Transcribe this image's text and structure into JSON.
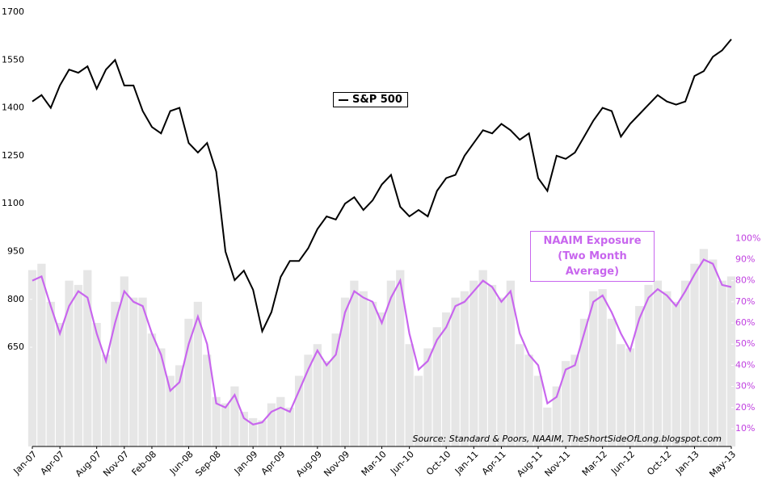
{
  "chart_data": {
    "type": "line",
    "categories": [
      "Jan-07",
      null,
      null,
      "Apr-07",
      null,
      null,
      null,
      "Aug-07",
      null,
      null,
      "Nov-07",
      null,
      null,
      "Feb-08",
      null,
      null,
      null,
      "Jun-08",
      null,
      null,
      "Sep-08",
      null,
      null,
      null,
      "Jan-09",
      null,
      null,
      "Apr-09",
      null,
      null,
      null,
      "Aug-09",
      null,
      null,
      "Nov-09",
      null,
      null,
      null,
      "Mar-10",
      null,
      null,
      "Jun-10",
      null,
      null,
      null,
      "Oct-10",
      null,
      null,
      "Jan-11",
      null,
      null,
      "Apr-11",
      null,
      null,
      null,
      "Aug-11",
      null,
      null,
      "Nov-11",
      null,
      null,
      null,
      "Mar-12",
      null,
      null,
      "Jun-12",
      null,
      null,
      null,
      "Oct-12",
      null,
      null,
      "Jan-13",
      null,
      null,
      null,
      "May-13"
    ],
    "series": [
      {
        "name": "S&P 500",
        "color": "#000000",
        "axis": "y",
        "values": [
          1420,
          1440,
          1400,
          1470,
          1520,
          1510,
          1530,
          1460,
          1520,
          1550,
          1470,
          1470,
          1390,
          1340,
          1320,
          1390,
          1400,
          1290,
          1260,
          1290,
          1200,
          950,
          860,
          890,
          830,
          700,
          760,
          870,
          920,
          920,
          960,
          1020,
          1060,
          1050,
          1100,
          1120,
          1080,
          1110,
          1160,
          1190,
          1090,
          1060,
          1080,
          1060,
          1140,
          1180,
          1190,
          1250,
          1290,
          1330,
          1320,
          1350,
          1330,
          1300,
          1320,
          1180,
          1140,
          1250,
          1240,
          1260,
          1310,
          1360,
          1400,
          1390,
          1310,
          1350,
          1380,
          1410,
          1440,
          1420,
          1410,
          1420,
          1500,
          1515,
          1560,
          1580,
          1615
        ]
      },
      {
        "name": "NAAIM Exposure (Two Month Average)",
        "color": "#c866ee",
        "axis": "y2",
        "values": [
          80,
          82,
          68,
          55,
          68,
          75,
          72,
          55,
          42,
          60,
          75,
          70,
          68,
          55,
          45,
          28,
          32,
          50,
          63,
          50,
          22,
          20,
          26,
          15,
          12,
          13,
          18,
          20,
          18,
          28,
          38,
          47,
          40,
          45,
          65,
          75,
          72,
          70,
          60,
          72,
          80,
          55,
          38,
          42,
          52,
          58,
          68,
          70,
          75,
          80,
          77,
          70,
          75,
          55,
          45,
          40,
          22,
          25,
          38,
          40,
          55,
          70,
          73,
          65,
          55,
          47,
          62,
          72,
          76,
          73,
          68,
          75,
          83,
          90,
          88,
          78,
          77
        ]
      },
      {
        "type": "bar",
        "color": "#e6e6e6",
        "axis": "y2",
        "values": [
          85,
          88,
          70,
          60,
          80,
          78,
          85,
          60,
          45,
          70,
          82,
          72,
          72,
          55,
          48,
          35,
          40,
          62,
          70,
          45,
          25,
          22,
          30,
          18,
          15,
          14,
          22,
          25,
          20,
          35,
          45,
          50,
          42,
          55,
          72,
          80,
          75,
          70,
          65,
          80,
          85,
          50,
          35,
          48,
          58,
          65,
          72,
          75,
          80,
          85,
          78,
          72,
          80,
          50,
          45,
          35,
          20,
          30,
          42,
          45,
          62,
          75,
          76,
          62,
          50,
          48,
          68,
          78,
          80,
          75,
          70,
          80,
          88,
          95,
          90,
          80,
          82
        ]
      }
    ],
    "ylim": [
      339,
      1700
    ],
    "yticks": [
      650,
      800,
      950,
      1100,
      1250,
      1400,
      1550,
      1700
    ],
    "y2lim": [
      1.6,
      207
    ],
    "y2ticks": [
      {
        "value": 10,
        "label": "10%"
      },
      {
        "value": 20,
        "label": "20%"
      },
      {
        "value": 30,
        "label": "30%"
      },
      {
        "value": 40,
        "label": "40%"
      },
      {
        "value": 50,
        "label": "50%"
      },
      {
        "value": 60,
        "label": "60%"
      },
      {
        "value": 70,
        "label": "70%"
      },
      {
        "value": 80,
        "label": "80%"
      },
      {
        "value": 90,
        "label": "90%"
      },
      {
        "value": 100,
        "label": "100%"
      }
    ],
    "annotation": "Source: Standard & Poors, NAAIM, TheShortSideOfLong.blogspot.com"
  }
}
